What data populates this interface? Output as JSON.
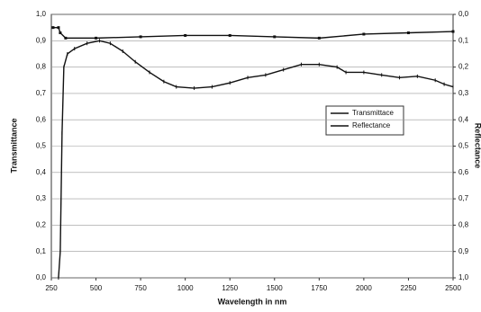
{
  "chart_data": {
    "type": "line",
    "xlabel": "Wavelength in nm",
    "ylabel": "Transmittance",
    "y2label": "Reflectance",
    "xlim": [
      250,
      2500
    ],
    "xticks": [
      250,
      500,
      750,
      1000,
      1250,
      1500,
      1750,
      2000,
      2250,
      2500
    ],
    "ylim": [
      0,
      1
    ],
    "yticks": [
      {
        "value": 0,
        "label": "0,0"
      },
      {
        "value": 0.1,
        "label": "0,1"
      },
      {
        "value": 0.2,
        "label": "0,2"
      },
      {
        "value": 0.3,
        "label": "0,3"
      },
      {
        "value": 0.4,
        "label": "0,4"
      },
      {
        "value": 0.5,
        "label": "0,5"
      },
      {
        "value": 0.6,
        "label": "0,6"
      },
      {
        "value": 0.7,
        "label": "0,7"
      },
      {
        "value": 0.8,
        "label": "0,8"
      },
      {
        "value": 0.9,
        "label": "0,9"
      },
      {
        "value": 1,
        "label": "1,0"
      }
    ],
    "y2lim": [
      1,
      0
    ],
    "y2ticks": [
      {
        "value": 0,
        "label": "0,0"
      },
      {
        "value": 0.1,
        "label": "0,1"
      },
      {
        "value": 0.2,
        "label": "0,2"
      },
      {
        "value": 0.3,
        "label": "0,3"
      },
      {
        "value": 0.4,
        "label": "0,4"
      },
      {
        "value": 0.5,
        "label": "0,5"
      },
      {
        "value": 0.6,
        "label": "0,6"
      },
      {
        "value": 0.7,
        "label": "0,7"
      },
      {
        "value": 0.8,
        "label": "0,8"
      },
      {
        "value": 0.9,
        "label": "0,9"
      },
      {
        "value": 1,
        "label": "1,0"
      }
    ],
    "grid": true,
    "legend": "right",
    "series": [
      {
        "name": "Transmittace",
        "color": "#111111",
        "x": [
          290,
          300,
          310,
          320,
          340,
          380,
          450,
          520,
          580,
          650,
          720,
          800,
          880,
          950,
          1050,
          1150,
          1250,
          1350,
          1450,
          1550,
          1650,
          1750,
          1850,
          1900,
          2000,
          2100,
          2200,
          2300,
          2400,
          2450,
          2500
        ],
        "values": [
          0.0,
          0.1,
          0.55,
          0.8,
          0.85,
          0.87,
          0.89,
          0.9,
          0.89,
          0.86,
          0.82,
          0.78,
          0.745,
          0.725,
          0.72,
          0.725,
          0.74,
          0.76,
          0.77,
          0.79,
          0.81,
          0.81,
          0.8,
          0.78,
          0.78,
          0.77,
          0.76,
          0.765,
          0.75,
          0.735,
          0.725
        ]
      },
      {
        "name": "Reflectance",
        "color": "#111111",
        "axis": "y2",
        "x": [
          260,
          290,
          300,
          330,
          500,
          750,
          1000,
          1250,
          1500,
          1750,
          2000,
          2250,
          2500
        ],
        "values": [
          0.05,
          0.05,
          0.07,
          0.09,
          0.09,
          0.085,
          0.08,
          0.08,
          0.085,
          0.09,
          0.075,
          0.07,
          0.065
        ]
      }
    ]
  }
}
